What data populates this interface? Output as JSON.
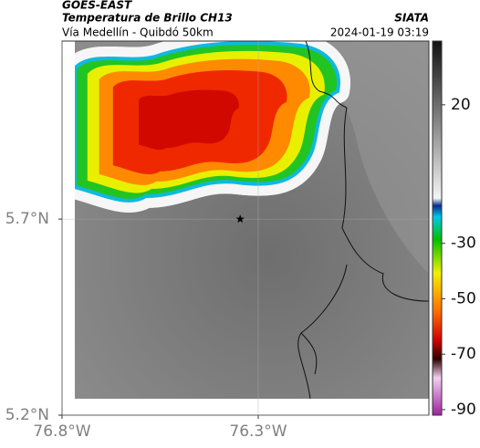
{
  "header": {
    "satellite": "GOES-EAST",
    "product": "Temperatura de Brillo CH13",
    "source": "SIATA",
    "route": "Vía Medellín - Quibdó 50km",
    "timestamp": "2024-01-19 03:19"
  },
  "chart_data": {
    "type": "map",
    "xlim": [
      -76.8,
      -75.865
    ],
    "ylim": [
      5.2,
      6.154
    ],
    "xticks": [
      {
        "value": -76.8,
        "label": "76.8°W"
      },
      {
        "value": -76.3,
        "label": "76.3°W"
      }
    ],
    "yticks": [
      {
        "value": 5.2,
        "label": "5.2°N"
      },
      {
        "value": 5.7,
        "label": "5.7°N"
      }
    ],
    "grid": true,
    "points": {
      "x": [
        -76.346
      ],
      "y": [
        5.7
      ]
    },
    "colorbar": {
      "clim": [
        -92,
        43
      ],
      "ticks": [
        20,
        -30,
        -50,
        -70,
        -90
      ]
    }
  }
}
